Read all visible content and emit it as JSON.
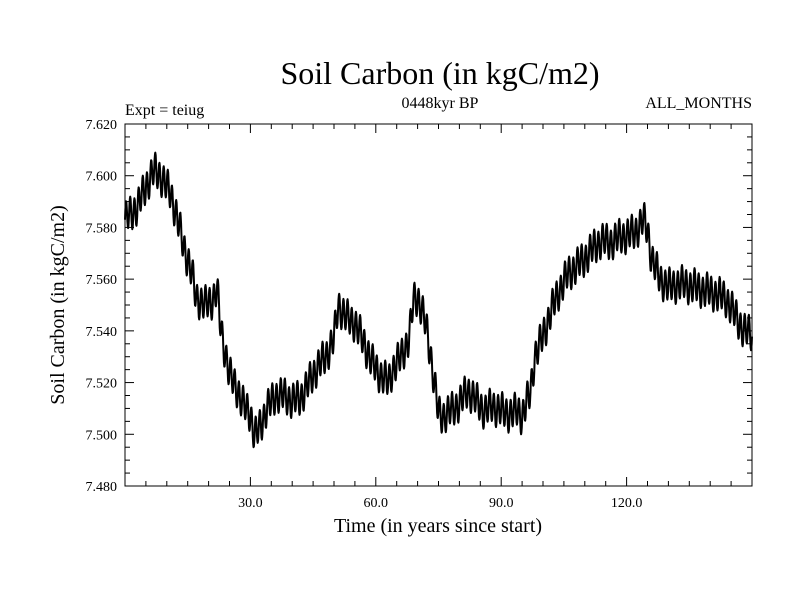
{
  "chart_data": {
    "type": "line",
    "title": "Soil Carbon (in kgC/m2)",
    "left_label": "Expt = teiug",
    "center_label": "0448kyr BP",
    "right_label": "ALL_MONTHS",
    "xlabel": "Time (in years since start)",
    "ylabel": "Soil Carbon (in kgC/m2)",
    "xlim": [
      0,
      150
    ],
    "ylim": [
      7.48,
      7.62
    ],
    "x_ticks": [
      30,
      60,
      90,
      120
    ],
    "x_tick_labels": [
      "30.0",
      "60.0",
      "90.0",
      "120.0"
    ],
    "y_ticks": [
      7.48,
      7.5,
      7.52,
      7.54,
      7.56,
      7.58,
      7.6,
      7.62
    ],
    "y_tick_labels": [
      "7.480",
      "7.500",
      "7.520",
      "7.540",
      "7.560",
      "7.580",
      "7.600",
      "7.620"
    ],
    "grid": false,
    "samples_per_year": 12,
    "seasonal_amplitude": 0.006,
    "series": [
      {
        "name": "Soil Carbon",
        "color": "#000000",
        "x": [
          0,
          3,
          5,
          7,
          8,
          11,
          13,
          14,
          16,
          17,
          19,
          21,
          22,
          23,
          25,
          27,
          28,
          30,
          31,
          32,
          34,
          36,
          38,
          40,
          42,
          44,
          46,
          48,
          50,
          51,
          53,
          55,
          57,
          59,
          61,
          63,
          64,
          66,
          68,
          69,
          70,
          71,
          72,
          73,
          74,
          75,
          76,
          78,
          80,
          82,
          84,
          86,
          87,
          88,
          90,
          92,
          94,
          95,
          96,
          97,
          98,
          100,
          102,
          104,
          106,
          108,
          110,
          112,
          114,
          116,
          118,
          120,
          122,
          124,
          125,
          126,
          128,
          130,
          132,
          134,
          136,
          138,
          140,
          142,
          144,
          146,
          148,
          150
        ],
        "y": [
          7.583,
          7.588,
          7.596,
          7.602,
          7.601,
          7.593,
          7.58,
          7.573,
          7.562,
          7.553,
          7.55,
          7.552,
          7.556,
          7.54,
          7.523,
          7.517,
          7.512,
          7.508,
          7.499,
          7.502,
          7.51,
          7.515,
          7.515,
          7.513,
          7.514,
          7.52,
          7.526,
          7.53,
          7.537,
          7.55,
          7.545,
          7.543,
          7.536,
          7.528,
          7.523,
          7.52,
          7.525,
          7.53,
          7.537,
          7.552,
          7.553,
          7.548,
          7.542,
          7.532,
          7.52,
          7.508,
          7.507,
          7.509,
          7.512,
          7.517,
          7.513,
          7.509,
          7.51,
          7.511,
          7.509,
          7.508,
          7.509,
          7.507,
          7.512,
          7.516,
          7.53,
          7.538,
          7.548,
          7.556,
          7.562,
          7.565,
          7.568,
          7.572,
          7.575,
          7.574,
          7.576,
          7.577,
          7.578,
          7.583,
          7.579,
          7.568,
          7.56,
          7.557,
          7.558,
          7.558,
          7.557,
          7.556,
          7.555,
          7.554,
          7.552,
          7.546,
          7.54,
          7.539
        ]
      }
    ]
  }
}
